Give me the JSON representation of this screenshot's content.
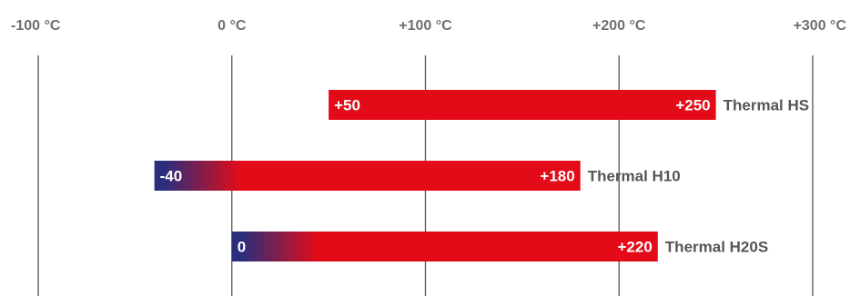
{
  "chart_data": {
    "type": "bar",
    "orientation": "horizontal",
    "subtype": "range",
    "title": "",
    "xlabel": "",
    "ylabel": "",
    "x_ticks": [
      "-100 °C",
      "0 °C",
      "+100 °C",
      "+200 °C",
      "+300 °C"
    ],
    "x_tick_values": [
      -100,
      0,
      100,
      200,
      300
    ],
    "xlim": [
      -100,
      300
    ],
    "grid": true,
    "series": [
      {
        "name": "Thermal HS",
        "min": 50,
        "max": 250,
        "min_label": "+50",
        "max_label": "+250",
        "cold_gradient": false
      },
      {
        "name": "Thermal H10",
        "min": -40,
        "max": 180,
        "min_label": "-40",
        "max_label": "+180",
        "cold_gradient": true
      },
      {
        "name": "Thermal H20S",
        "min": 0,
        "max": 220,
        "min_label": "0",
        "max_label": "+220",
        "cold_gradient": true
      }
    ],
    "colors": {
      "hot": "#e30b17",
      "cold": "#2b2e7c",
      "grid": "#555555",
      "tick_text": "#707070",
      "label_text": "#555555"
    }
  }
}
